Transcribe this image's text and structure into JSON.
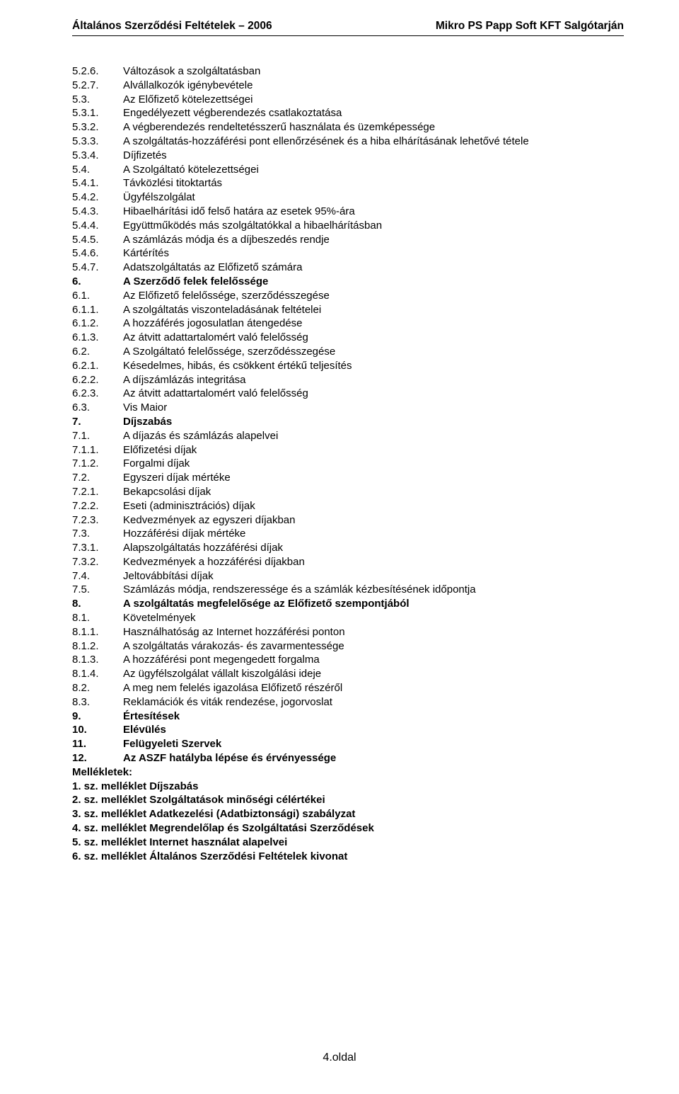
{
  "header": {
    "left": "Általános Szerződési Feltételek – 2006",
    "right": "Mikro PS Papp Soft KFT Salgótarján"
  },
  "toc": [
    {
      "num": "5.2.6.",
      "text": "Változások a szolgáltatásban",
      "bold": false
    },
    {
      "num": "5.2.7.",
      "text": "Alvállalkozók igénybevétele",
      "bold": false
    },
    {
      "num": "5.3.",
      "text": "Az Előfizető kötelezettségei",
      "bold": false
    },
    {
      "num": "5.3.1.",
      "text": "Engedélyezett végberendezés csatlakoztatása",
      "bold": false
    },
    {
      "num": "5.3.2.",
      "text": "A végberendezés rendeltetésszerű használata és üzemképessége",
      "bold": false
    },
    {
      "num": "5.3.3.",
      "text": "A szolgáltatás-hozzáférési pont ellenőrzésének és a hiba elhárításának lehetővé tétele",
      "bold": false
    },
    {
      "num": "5.3.4.",
      "text": "Díjfizetés",
      "bold": false
    },
    {
      "num": "5.4.",
      "text": "A Szolgáltató kötelezettségei",
      "bold": false
    },
    {
      "num": "5.4.1.",
      "text": "Távközlési titoktartás",
      "bold": false
    },
    {
      "num": "5.4.2.",
      "text": "Ügyfélszolgálat",
      "bold": false
    },
    {
      "num": "5.4.3.",
      "text": "Hibaelhárítási idő felső határa az esetek 95%-ára",
      "bold": false
    },
    {
      "num": "5.4.4.",
      "text": "Együttműködés más szolgáltatókkal a hibaelhárításban",
      "bold": false
    },
    {
      "num": "5.4.5.",
      "text": "A számlázás módja és a díjbeszedés rendje",
      "bold": false
    },
    {
      "num": "5.4.6.",
      "text": "Kártérítés",
      "bold": false
    },
    {
      "num": "5.4.7.",
      "text": "Adatszolgáltatás az Előfizető számára",
      "bold": false
    },
    {
      "num": "6.",
      "text": "A Szerződő felek felelőssége",
      "bold": true
    },
    {
      "num": "6.1.",
      "text": "Az Előfizető felelőssége, szerződésszegése",
      "bold": false
    },
    {
      "num": "6.1.1.",
      "text": "A szolgáltatás viszonteladásának feltételei",
      "bold": false
    },
    {
      "num": "6.1.2.",
      "text": "A hozzáférés jogosulatlan átengedése",
      "bold": false
    },
    {
      "num": "6.1.3.",
      "text": "Az átvitt adattartalomért való felelősség",
      "bold": false
    },
    {
      "num": "6.2.",
      "text": "A Szolgáltató felelőssége, szerződésszegése",
      "bold": false
    },
    {
      "num": "6.2.1.",
      "text": "Késedelmes, hibás, és csökkent értékű teljesítés",
      "bold": false
    },
    {
      "num": "6.2.2.",
      "text": "A díjszámlázás integritása",
      "bold": false
    },
    {
      "num": "6.2.3.",
      "text": "Az átvitt adattartalomért való felelősség",
      "bold": false
    },
    {
      "num": "6.3.",
      "text": "Vis Maior",
      "bold": false
    },
    {
      "num": "7.",
      "text": "Díjszabás",
      "bold": true
    },
    {
      "num": "7.1.",
      "text": "A díjazás és számlázás alapelvei",
      "bold": false
    },
    {
      "num": "7.1.1.",
      "text": "Előfizetési díjak",
      "bold": false
    },
    {
      "num": "7.1.2.",
      "text": "Forgalmi díjak",
      "bold": false
    },
    {
      "num": "7.2.",
      "text": "Egyszeri díjak mértéke",
      "bold": false
    },
    {
      "num": "7.2.1.",
      "text": "Bekapcsolási díjak",
      "bold": false
    },
    {
      "num": "7.2.2.",
      "text": "Eseti (adminisztrációs) díjak",
      "bold": false
    },
    {
      "num": "7.2.3.",
      "text": "Kedvezmények az egyszeri díjakban",
      "bold": false
    },
    {
      "num": "7.3.",
      "text": "Hozzáférési díjak mértéke",
      "bold": false
    },
    {
      "num": "7.3.1.",
      "text": "Alapszolgáltatás hozzáférési díjak",
      "bold": false
    },
    {
      "num": "7.3.2.",
      "text": "Kedvezmények a hozzáférési díjakban",
      "bold": false
    },
    {
      "num": "7.4.",
      "text": "Jeltovábbítási díjak",
      "bold": false
    },
    {
      "num": "7.5.",
      "text": "Számlázás módja, rendszeressége és a számlák kézbesítésének időpontja",
      "bold": false
    },
    {
      "num": "8.",
      "text": "A szolgáltatás megfelelősége az Előfizető szempontjából",
      "bold": true
    },
    {
      "num": "8.1.",
      "text": "Követelmények",
      "bold": false
    },
    {
      "num": "8.1.1.",
      "text": "Használhatóság az Internet hozzáférési ponton",
      "bold": false
    },
    {
      "num": "8.1.2.",
      "text": "A szolgáltatás várakozás- és zavarmentessége",
      "bold": false
    },
    {
      "num": "8.1.3.",
      "text": "A hozzáférési pont megengedett forgalma",
      "bold": false
    },
    {
      "num": "8.1.4.",
      "text": "Az ügyfélszolgálat vállalt kiszolgálási ideje",
      "bold": false
    },
    {
      "num": "8.2.",
      "text": "A meg nem felelés igazolása Előfizető részéről",
      "bold": false
    },
    {
      "num": "8.3.",
      "text": "Reklamációk és viták rendezése, jogorvoslat",
      "bold": false
    },
    {
      "num": "9.",
      "text": "Értesítések",
      "bold": true
    },
    {
      "num": "10.",
      "text": "Elévülés",
      "bold": true
    },
    {
      "num": "11.",
      "text": "Felügyeleti Szervek",
      "bold": true
    },
    {
      "num": "12.",
      "text": "Az ASZF hatályba lépése és érvényessége",
      "bold": true
    }
  ],
  "plain_lines": [
    {
      "text": "Mellékletek:",
      "bold": true
    },
    {
      "text": "1. sz. melléklet Díjszabás",
      "bold": true
    },
    {
      "text": "2. sz. melléklet Szolgáltatások minőségi célértékei",
      "bold": true
    },
    {
      "text": "3. sz. melléklet Adatkezelési (Adatbiztonsági) szabályzat",
      "bold": true
    },
    {
      "text": "4. sz. melléklet Megrendelőlap és Szolgáltatási Szerződések",
      "bold": true
    },
    {
      "text": "5. sz. melléklet Internet használat alapelvei",
      "bold": true
    },
    {
      "text": "6. sz. melléklet Általános Szerződési Feltételek kivonat",
      "bold": true
    }
  ],
  "footer": "4.oldal"
}
